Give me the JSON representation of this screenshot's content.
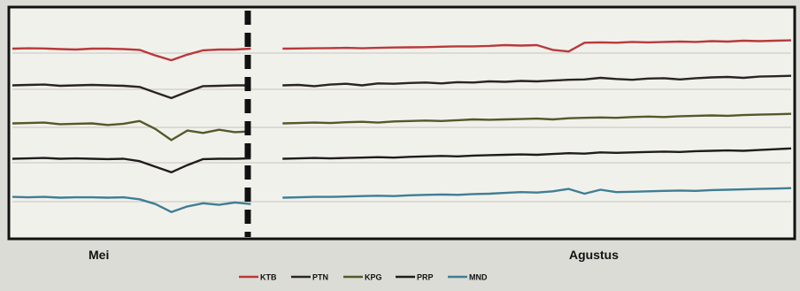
{
  "chart_data": {
    "type": "line",
    "x_labels": [
      "Mei",
      "Agustus"
    ],
    "divider": "between Mei and Agustus",
    "grid": false,
    "legend": {
      "placement": "bottom-center"
    },
    "series": [
      {
        "name": "KTB",
        "color": "#b83a3a",
        "values": [
          0.55,
          0.6,
          0.58,
          0.5,
          0.45,
          0.55,
          0.55,
          0.5,
          0.4,
          -0.3,
          -0.9,
          -0.2,
          0.35,
          0.45,
          0.45,
          0.55,
          null,
          0.55,
          0.58,
          0.6,
          0.62,
          0.65,
          0.6,
          0.65,
          0.7,
          0.72,
          0.75,
          0.8,
          0.85,
          0.85,
          0.9,
          1.0,
          0.95,
          1.0,
          0.4,
          0.2,
          1.3,
          1.35,
          1.3,
          1.4,
          1.35,
          1.4,
          1.45,
          1.4,
          1.5,
          1.45,
          1.55,
          1.5,
          1.55,
          1.6
        ]
      },
      {
        "name": "PTN",
        "color": "#2a2424",
        "values": [
          0.5,
          0.55,
          0.6,
          0.45,
          0.5,
          0.55,
          0.5,
          0.45,
          0.3,
          -0.4,
          -1.1,
          -0.3,
          0.4,
          0.45,
          0.5,
          0.5,
          null,
          0.5,
          0.55,
          0.4,
          0.6,
          0.7,
          0.5,
          0.75,
          0.7,
          0.8,
          0.85,
          0.75,
          0.9,
          0.85,
          1.0,
          0.95,
          1.05,
          1.0,
          1.1,
          1.2,
          1.25,
          1.45,
          1.3,
          1.2,
          1.35,
          1.4,
          1.25,
          1.4,
          1.5,
          1.55,
          1.45,
          1.6,
          1.65,
          1.7
        ]
      },
      {
        "name": "KPG",
        "color": "#55582a",
        "values": [
          0.5,
          0.55,
          0.6,
          0.4,
          0.45,
          0.5,
          0.3,
          0.45,
          0.8,
          -0.2,
          -1.6,
          -0.4,
          -0.7,
          -0.3,
          -0.6,
          -0.5,
          null,
          0.5,
          0.55,
          0.6,
          0.55,
          0.65,
          0.7,
          0.6,
          0.75,
          0.8,
          0.85,
          0.8,
          0.9,
          1.0,
          0.95,
          1.0,
          1.05,
          1.1,
          1.0,
          1.15,
          1.2,
          1.25,
          1.2,
          1.3,
          1.35,
          1.3,
          1.4,
          1.45,
          1.5,
          1.45,
          1.55,
          1.6,
          1.65,
          1.7
        ]
      },
      {
        "name": "PRP",
        "color": "#201c1c",
        "values": [
          0.5,
          0.55,
          0.6,
          0.5,
          0.55,
          0.5,
          0.45,
          0.5,
          0.2,
          -0.5,
          -1.2,
          -0.3,
          0.45,
          0.5,
          0.5,
          0.55,
          null,
          0.5,
          0.55,
          0.6,
          0.55,
          0.6,
          0.65,
          0.7,
          0.65,
          0.75,
          0.8,
          0.85,
          0.8,
          0.9,
          0.95,
          1.0,
          1.05,
          1.0,
          1.1,
          1.2,
          1.15,
          1.3,
          1.25,
          1.3,
          1.35,
          1.4,
          1.35,
          1.45,
          1.5,
          1.55,
          1.5,
          1.6,
          1.7,
          1.8
        ]
      },
      {
        "name": "MND",
        "color": "#3f7e94",
        "values": [
          0.6,
          0.55,
          0.6,
          0.5,
          0.55,
          0.55,
          0.5,
          0.55,
          0.3,
          -0.3,
          -1.3,
          -0.6,
          -0.2,
          -0.4,
          -0.1,
          -0.3,
          null,
          0.5,
          0.55,
          0.6,
          0.6,
          0.65,
          0.7,
          0.75,
          0.7,
          0.8,
          0.85,
          0.9,
          0.85,
          0.95,
          1.0,
          1.1,
          1.2,
          1.15,
          1.3,
          1.6,
          1.0,
          1.5,
          1.2,
          1.25,
          1.3,
          1.35,
          1.4,
          1.35,
          1.45,
          1.5,
          1.55,
          1.6,
          1.65,
          1.7
        ]
      }
    ]
  }
}
